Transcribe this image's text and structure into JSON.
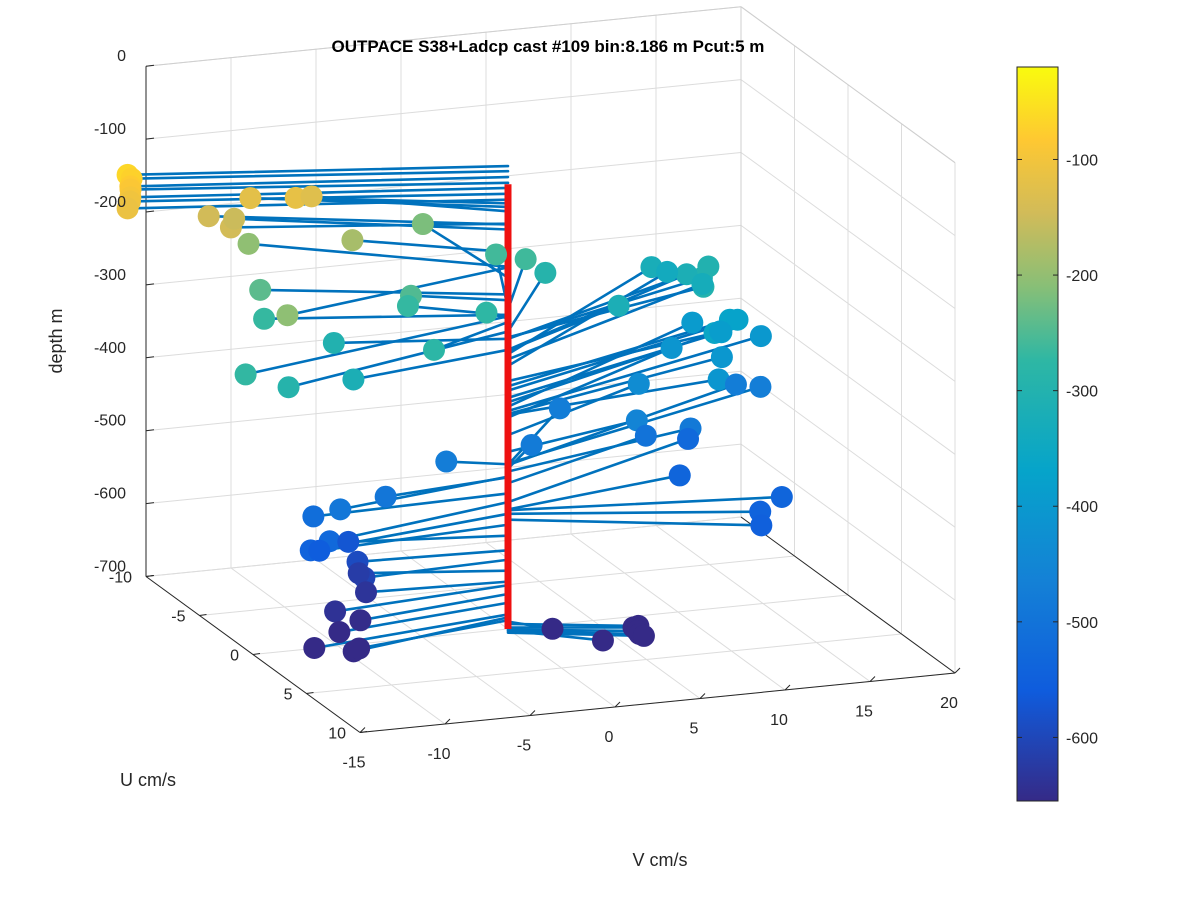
{
  "chart_data": {
    "type": "3d-scatter-quiver",
    "title": "OUTPACE S38+Ladcp cast #109 bin:8.186 m  Pcut:5 m",
    "xlabel": "V cm/s",
    "ylabel": "U cm/s",
    "zlabel": "depth m",
    "xlim": [
      -15,
      20
    ],
    "ylim": [
      -10,
      10
    ],
    "zlim": [
      -700,
      0
    ],
    "x_ticks": [
      "-15",
      "-10",
      "-5",
      "0",
      "5",
      "10",
      "15",
      "20"
    ],
    "y_ticks": [
      "-10",
      "-5",
      "0",
      "5",
      "10"
    ],
    "z_ticks": [
      "0",
      "-100",
      "-200",
      "-300",
      "-400",
      "-500",
      "-600",
      "-700"
    ],
    "colorbar": {
      "colormap": "parula",
      "range": [
        -655,
        -20
      ],
      "ticks": [
        "-100",
        "-200",
        "-300",
        "-400",
        "-500",
        "-600"
      ]
    },
    "vertical_line": {
      "color": "#ee1111",
      "x": 0,
      "y": 0,
      "z_top": -90,
      "z_bottom": -700
    },
    "stick_color": "#0072bd",
    "points": [
      {
        "v": -20.3,
        "u": -3.3,
        "depth": -65
      },
      {
        "v": -20.0,
        "u": -3.4,
        "depth": -72
      },
      {
        "v": -20.2,
        "u": -3.2,
        "depth": -80
      },
      {
        "v": -20.0,
        "u": -3.5,
        "depth": -88
      },
      {
        "v": -20.2,
        "u": -3.2,
        "depth": -95
      },
      {
        "v": -20.1,
        "u": -3.4,
        "depth": -103
      },
      {
        "v": -20.3,
        "u": -3.3,
        "depth": -111
      },
      {
        "v": -10.6,
        "u": -3.0,
        "depth": -116
      },
      {
        "v": -12.7,
        "u": -3.9,
        "depth": -121
      },
      {
        "v": -9.1,
        "u": -3.9,
        "depth": -127
      },
      {
        "v": -14.9,
        "u": -4.3,
        "depth": -145
      },
      {
        "v": -14.6,
        "u": -2.7,
        "depth": -144
      },
      {
        "v": -13.4,
        "u": -4.3,
        "depth": -152
      },
      {
        "v": -7.2,
        "u": -3.1,
        "depth": -183
      },
      {
        "v": -11.8,
        "u": -5.5,
        "depth": -203
      },
      {
        "v": -14.8,
        "u": 2.9,
        "depth": -204
      },
      {
        "v": -0.6,
        "u": -7.0,
        "depth": -218
      },
      {
        "v": -12.5,
        "u": -3.3,
        "depth": -241
      },
      {
        "v": -4.7,
        "u": -1.6,
        "depth": -249
      },
      {
        "v": 3.2,
        "u": -6.2,
        "depth": -260
      },
      {
        "v": 4.5,
        "u": -5.5,
        "depth": -262
      },
      {
        "v": -17.7,
        "u": 3.6,
        "depth": -271
      },
      {
        "v": -12.9,
        "u": -2.3,
        "depth": -269
      },
      {
        "v": -4.5,
        "u": -2.2,
        "depth": -270
      },
      {
        "v": -0.7,
        "u": -0.9,
        "depth": -274
      },
      {
        "v": -5.8,
        "u": 2.3,
        "depth": -279
      },
      {
        "v": -15.3,
        "u": 3.8,
        "depth": -292
      },
      {
        "v": 6.1,
        "u": -6.2,
        "depth": -292
      },
      {
        "v": 13.7,
        "u": -3.5,
        "depth": -300
      },
      {
        "v": -9.3,
        "u": -1.5,
        "depth": -302
      },
      {
        "v": 14.3,
        "u": -4.6,
        "depth": -301
      },
      {
        "v": 15.5,
        "u": -5.9,
        "depth": -302
      },
      {
        "v": -10.1,
        "u": 1.6,
        "depth": -317
      },
      {
        "v": 8.9,
        "u": -3.8,
        "depth": -318
      },
      {
        "v": 14.6,
        "u": -6.5,
        "depth": -317
      },
      {
        "v": 13.6,
        "u": -8.2,
        "depth": -323
      },
      {
        "v": 15.4,
        "u": -6.3,
        "depth": -330
      },
      {
        "v": 14.9,
        "u": -8.8,
        "depth": -339
      },
      {
        "v": 14.1,
        "u": -3.1,
        "depth": -360
      },
      {
        "v": 16.2,
        "u": -5.0,
        "depth": -367
      },
      {
        "v": 16.9,
        "u": -5.4,
        "depth": -373
      },
      {
        "v": 15.7,
        "u": -5.0,
        "depth": -383
      },
      {
        "v": 16.0,
        "u": -5.6,
        "depth": -389
      },
      {
        "v": 15.5,
        "u": -7.4,
        "depth": -395
      },
      {
        "v": 18.4,
        "u": -5.6,
        "depth": -401
      },
      {
        "v": 13.4,
        "u": -1.6,
        "depth": -406
      },
      {
        "v": 13.4,
        "u": -6.0,
        "depth": -410
      },
      {
        "v": 15.1,
        "u": -4.0,
        "depth": -405
      },
      {
        "v": 10.4,
        "u": -4.3,
        "depth": -434
      },
      {
        "v": 8.9,
        "u": -2.1,
        "depth": -457
      },
      {
        "v": -3.0,
        "u": -1.0,
        "depth": -474
      },
      {
        "v": 6.7,
        "u": -5.8,
        "depth": -475
      },
      {
        "v": 17.5,
        "u": -6.5,
        "depth": -475
      },
      {
        "v": 18.5,
        "u": -5.8,
        "depth": -473
      },
      {
        "v": 2.9,
        "u": -2.4,
        "depth": -480
      },
      {
        "v": 12.5,
        "u": -2.8,
        "depth": -484
      },
      {
        "v": -11.0,
        "u": 1.8,
        "depth": -491
      },
      {
        "v": -7.7,
        "u": 0.8,
        "depth": -492
      },
      {
        "v": 10.5,
        "u": -3.8,
        "depth": -500
      },
      {
        "v": 13.8,
        "u": -5.1,
        "depth": -526
      },
      {
        "v": 11.3,
        "u": -1.9,
        "depth": -536
      },
      {
        "v": -11.7,
        "u": 0.4,
        "depth": -514
      },
      {
        "v": -12.0,
        "u": 2.4,
        "depth": -526
      },
      {
        "v": -12.8,
        "u": 1.9,
        "depth": -542
      },
      {
        "v": 13.2,
        "u": 2.6,
        "depth": -542
      },
      {
        "v": 12.7,
        "u": 3.5,
        "depth": -550
      },
      {
        "v": 15.1,
        "u": 1.6,
        "depth": -537
      },
      {
        "v": -11.6,
        "u": 0.8,
        "depth": -557
      },
      {
        "v": -8.7,
        "u": -1.1,
        "depth": -572
      },
      {
        "v": -8.6,
        "u": -0.4,
        "depth": -592
      },
      {
        "v": -8.7,
        "u": 0.4,
        "depth": -605
      },
      {
        "v": -7.9,
        "u": -1.4,
        "depth": -620
      },
      {
        "v": -8.1,
        "u": -0.4,
        "depth": -635
      },
      {
        "v": -10.8,
        "u": 1.0,
        "depth": -640
      },
      {
        "v": -9.5,
        "u": 1.3,
        "depth": -652
      },
      {
        "v": -10.8,
        "u": 1.4,
        "depth": -664
      },
      {
        "v": -12.4,
        "u": 1.6,
        "depth": -680
      },
      {
        "v": -10.4,
        "u": 2.1,
        "depth": -684
      },
      {
        "v": -9.7,
        "u": 1.5,
        "depth": -688
      },
      {
        "v": 1.8,
        "u": 1.3,
        "depth": -690
      },
      {
        "v": 6.6,
        "u": 1.7,
        "depth": -693
      },
      {
        "v": 6.5,
        "u": 1.4,
        "depth": -698
      },
      {
        "v": 6.6,
        "u": 1.6,
        "depth": -701
      },
      {
        "v": 6.6,
        "u": 1.8,
        "depth": -703
      },
      {
        "v": 6.8,
        "u": 1.9,
        "depth": -705
      },
      {
        "v": 4.2,
        "u": 2.2,
        "depth": -702
      }
    ]
  }
}
